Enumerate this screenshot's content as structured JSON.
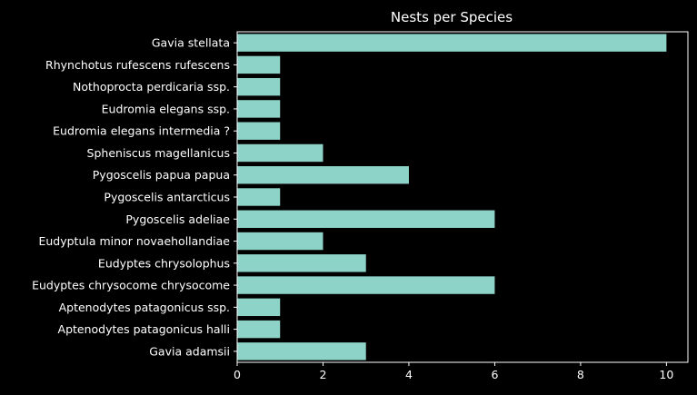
{
  "chart_data": {
    "type": "bar",
    "orientation": "horizontal",
    "title": "Nests per Species",
    "xlabel": "",
    "ylabel": "",
    "categories": [
      "Gavia stellata",
      "Rhynchotus rufescens rufescens",
      "Nothoprocta perdicaria ssp.",
      "Eudromia elegans ssp.",
      "Eudromia elegans intermedia ?",
      "Spheniscus magellanicus",
      "Pygoscelis papua papua",
      "Pygoscelis antarcticus",
      "Pygoscelis adeliae",
      "Eudyptula minor novaehollandiae",
      "Eudyptes chrysolophus",
      "Eudyptes chrysocome chrysocome",
      "Aptenodytes patagonicus ssp.",
      "Aptenodytes patagonicus halli",
      "Gavia adamsii"
    ],
    "values": [
      10,
      1,
      1,
      1,
      1,
      2,
      4,
      1,
      6,
      2,
      3,
      6,
      1,
      1,
      3
    ],
    "xlim": [
      0,
      10.5
    ],
    "xticks": [
      0,
      2,
      4,
      6,
      8,
      10
    ],
    "grid": false,
    "legend": "none",
    "colors": {
      "background": "#000000",
      "bar": "#8dd3c7",
      "axis": "#ffffff",
      "text": "#ffffff"
    }
  }
}
